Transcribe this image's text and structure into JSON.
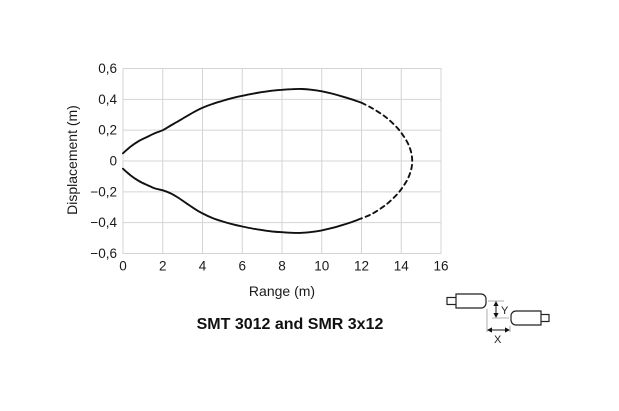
{
  "chart_data": {
    "type": "line",
    "title": "SMT 3012 and SMR 3x12",
    "xlabel": "Range (m)",
    "ylabel": "Displacement (m)",
    "xlim": [
      0,
      16
    ],
    "ylim": [
      -0.6,
      0.6
    ],
    "grid": true,
    "legend": "none",
    "x_ticks": [
      0,
      2,
      4,
      6,
      8,
      10,
      12,
      14,
      16
    ],
    "x_tick_labels": [
      "0",
      "2",
      "4",
      "6",
      "8",
      "10",
      "12",
      "14",
      "16"
    ],
    "y_ticks": [
      0.6,
      0.4,
      0.2,
      0,
      -0.2,
      -0.4,
      -0.6
    ],
    "y_tick_labels": [
      "0,6",
      "0,4",
      "0,2",
      "0",
      "−0,2",
      "−0,4",
      "−0,6"
    ],
    "series": [
      {
        "name": "detection-zone-upper-solid",
        "style": "solid",
        "points": [
          [
            0,
            0.05
          ],
          [
            0.4,
            0.095
          ],
          [
            0.8,
            0.13
          ],
          [
            1.2,
            0.155
          ],
          [
            1.6,
            0.18
          ],
          [
            2,
            0.2
          ],
          [
            2.4,
            0.23
          ],
          [
            2.8,
            0.26
          ],
          [
            3.2,
            0.29
          ],
          [
            3.6,
            0.32
          ],
          [
            4,
            0.345
          ],
          [
            4.5,
            0.37
          ],
          [
            5,
            0.39
          ],
          [
            5.5,
            0.408
          ],
          [
            6,
            0.423
          ],
          [
            6.5,
            0.436
          ],
          [
            7,
            0.447
          ],
          [
            7.5,
            0.456
          ],
          [
            8,
            0.462
          ],
          [
            8.5,
            0.466
          ],
          [
            9,
            0.467
          ],
          [
            9.5,
            0.462
          ],
          [
            10,
            0.452
          ],
          [
            10.5,
            0.438
          ],
          [
            11,
            0.42
          ],
          [
            11.5,
            0.4
          ],
          [
            12,
            0.378
          ]
        ]
      },
      {
        "name": "detection-zone-lower-solid",
        "style": "solid",
        "points": [
          [
            0,
            -0.05
          ],
          [
            0.4,
            -0.095
          ],
          [
            0.8,
            -0.13
          ],
          [
            1.2,
            -0.155
          ],
          [
            1.6,
            -0.178
          ],
          [
            2,
            -0.19
          ],
          [
            2.4,
            -0.21
          ],
          [
            2.8,
            -0.24
          ],
          [
            3.2,
            -0.275
          ],
          [
            3.6,
            -0.31
          ],
          [
            4,
            -0.34
          ],
          [
            4.5,
            -0.37
          ],
          [
            5,
            -0.392
          ],
          [
            5.5,
            -0.41
          ],
          [
            6,
            -0.425
          ],
          [
            6.5,
            -0.438
          ],
          [
            7,
            -0.448
          ],
          [
            7.5,
            -0.457
          ],
          [
            8,
            -0.462
          ],
          [
            8.5,
            -0.466
          ],
          [
            9,
            -0.466
          ],
          [
            9.5,
            -0.46
          ],
          [
            10,
            -0.45
          ],
          [
            10.5,
            -0.435
          ],
          [
            11,
            -0.417
          ],
          [
            11.5,
            -0.396
          ],
          [
            12,
            -0.372
          ]
        ]
      },
      {
        "name": "detection-zone-tip-dashed",
        "style": "dashed",
        "points": [
          [
            12,
            0.378
          ],
          [
            12.5,
            0.345
          ],
          [
            13,
            0.305
          ],
          [
            13.4,
            0.265
          ],
          [
            13.8,
            0.215
          ],
          [
            14.1,
            0.165
          ],
          [
            14.35,
            0.11
          ],
          [
            14.5,
            0.055
          ],
          [
            14.55,
            0
          ],
          [
            14.5,
            -0.055
          ],
          [
            14.35,
            -0.11
          ],
          [
            14.1,
            -0.165
          ],
          [
            13.8,
            -0.215
          ],
          [
            13.4,
            -0.265
          ],
          [
            13,
            -0.305
          ],
          [
            12.5,
            -0.345
          ],
          [
            12,
            -0.372
          ]
        ]
      }
    ]
  },
  "icon": {
    "name": "transmitter-receiver-alignment",
    "x_label": "X",
    "y_label": "Y"
  },
  "colors": {
    "curve": "#111111",
    "grid": "#d4d4d4",
    "text": "#1a1a1a",
    "icon_outline": "#222222",
    "guide": "#999999"
  }
}
